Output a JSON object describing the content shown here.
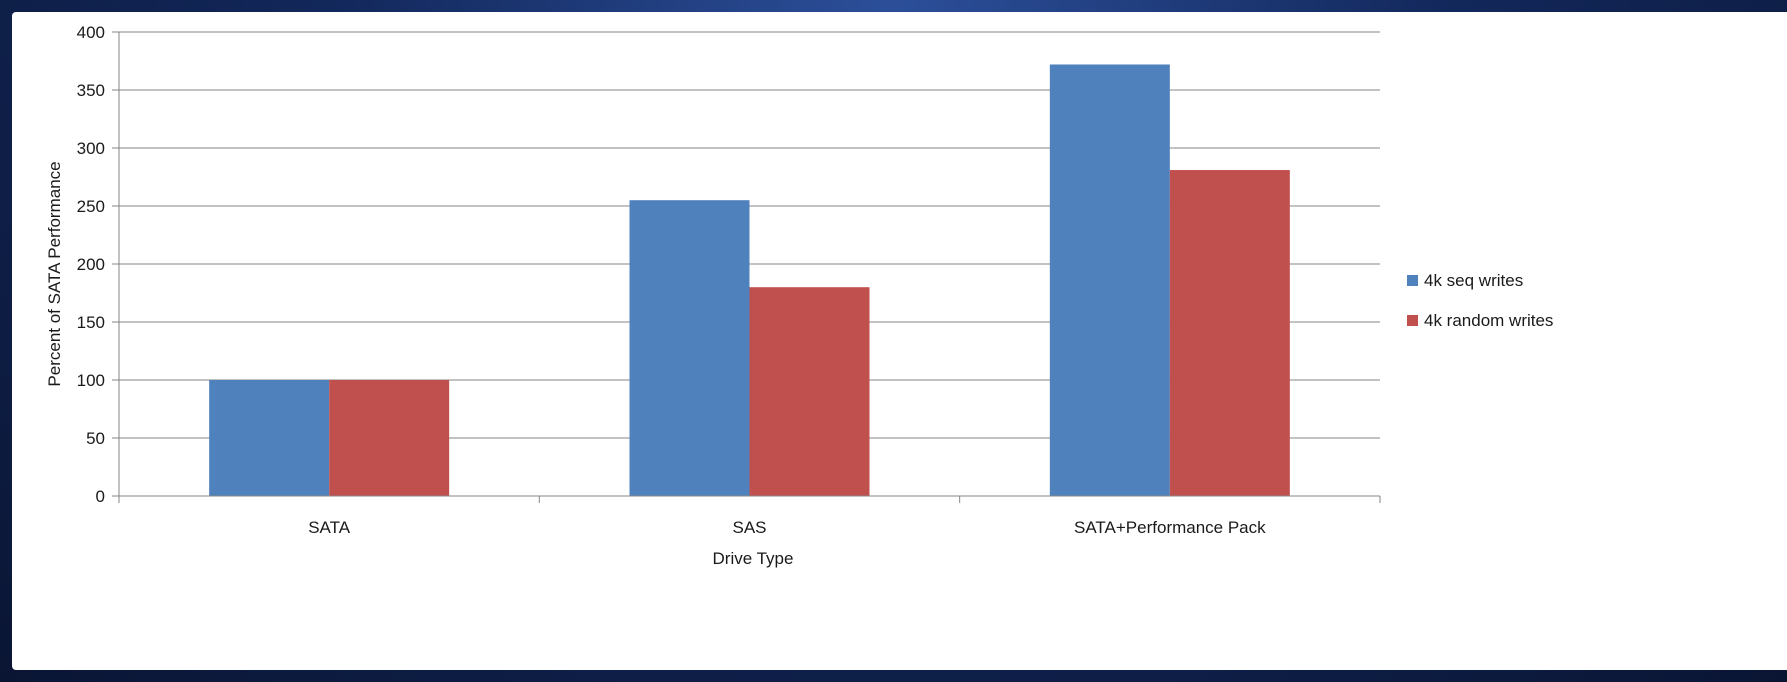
{
  "chart_data": {
    "type": "bar",
    "categories": [
      "SATA",
      "SAS",
      "SATA+Performance Pack"
    ],
    "series": [
      {
        "name": "4k seq writes",
        "values": [
          100,
          255,
          372
        ],
        "color": "#4f81bd"
      },
      {
        "name": "4k random writes",
        "values": [
          100,
          180,
          281
        ],
        "color": "#c0504d"
      }
    ],
    "title": "",
    "xlabel": "Drive Type",
    "ylabel": "Percent of SATA Performance",
    "ylim": [
      0,
      400
    ],
    "yticks": [
      0,
      50,
      100,
      150,
      200,
      250,
      300,
      350,
      400
    ],
    "grid": "horizontal",
    "legend_position": "right"
  },
  "colors": {
    "background": "#12275a",
    "plot_background": "#ffffff",
    "gridline": "#868686"
  }
}
